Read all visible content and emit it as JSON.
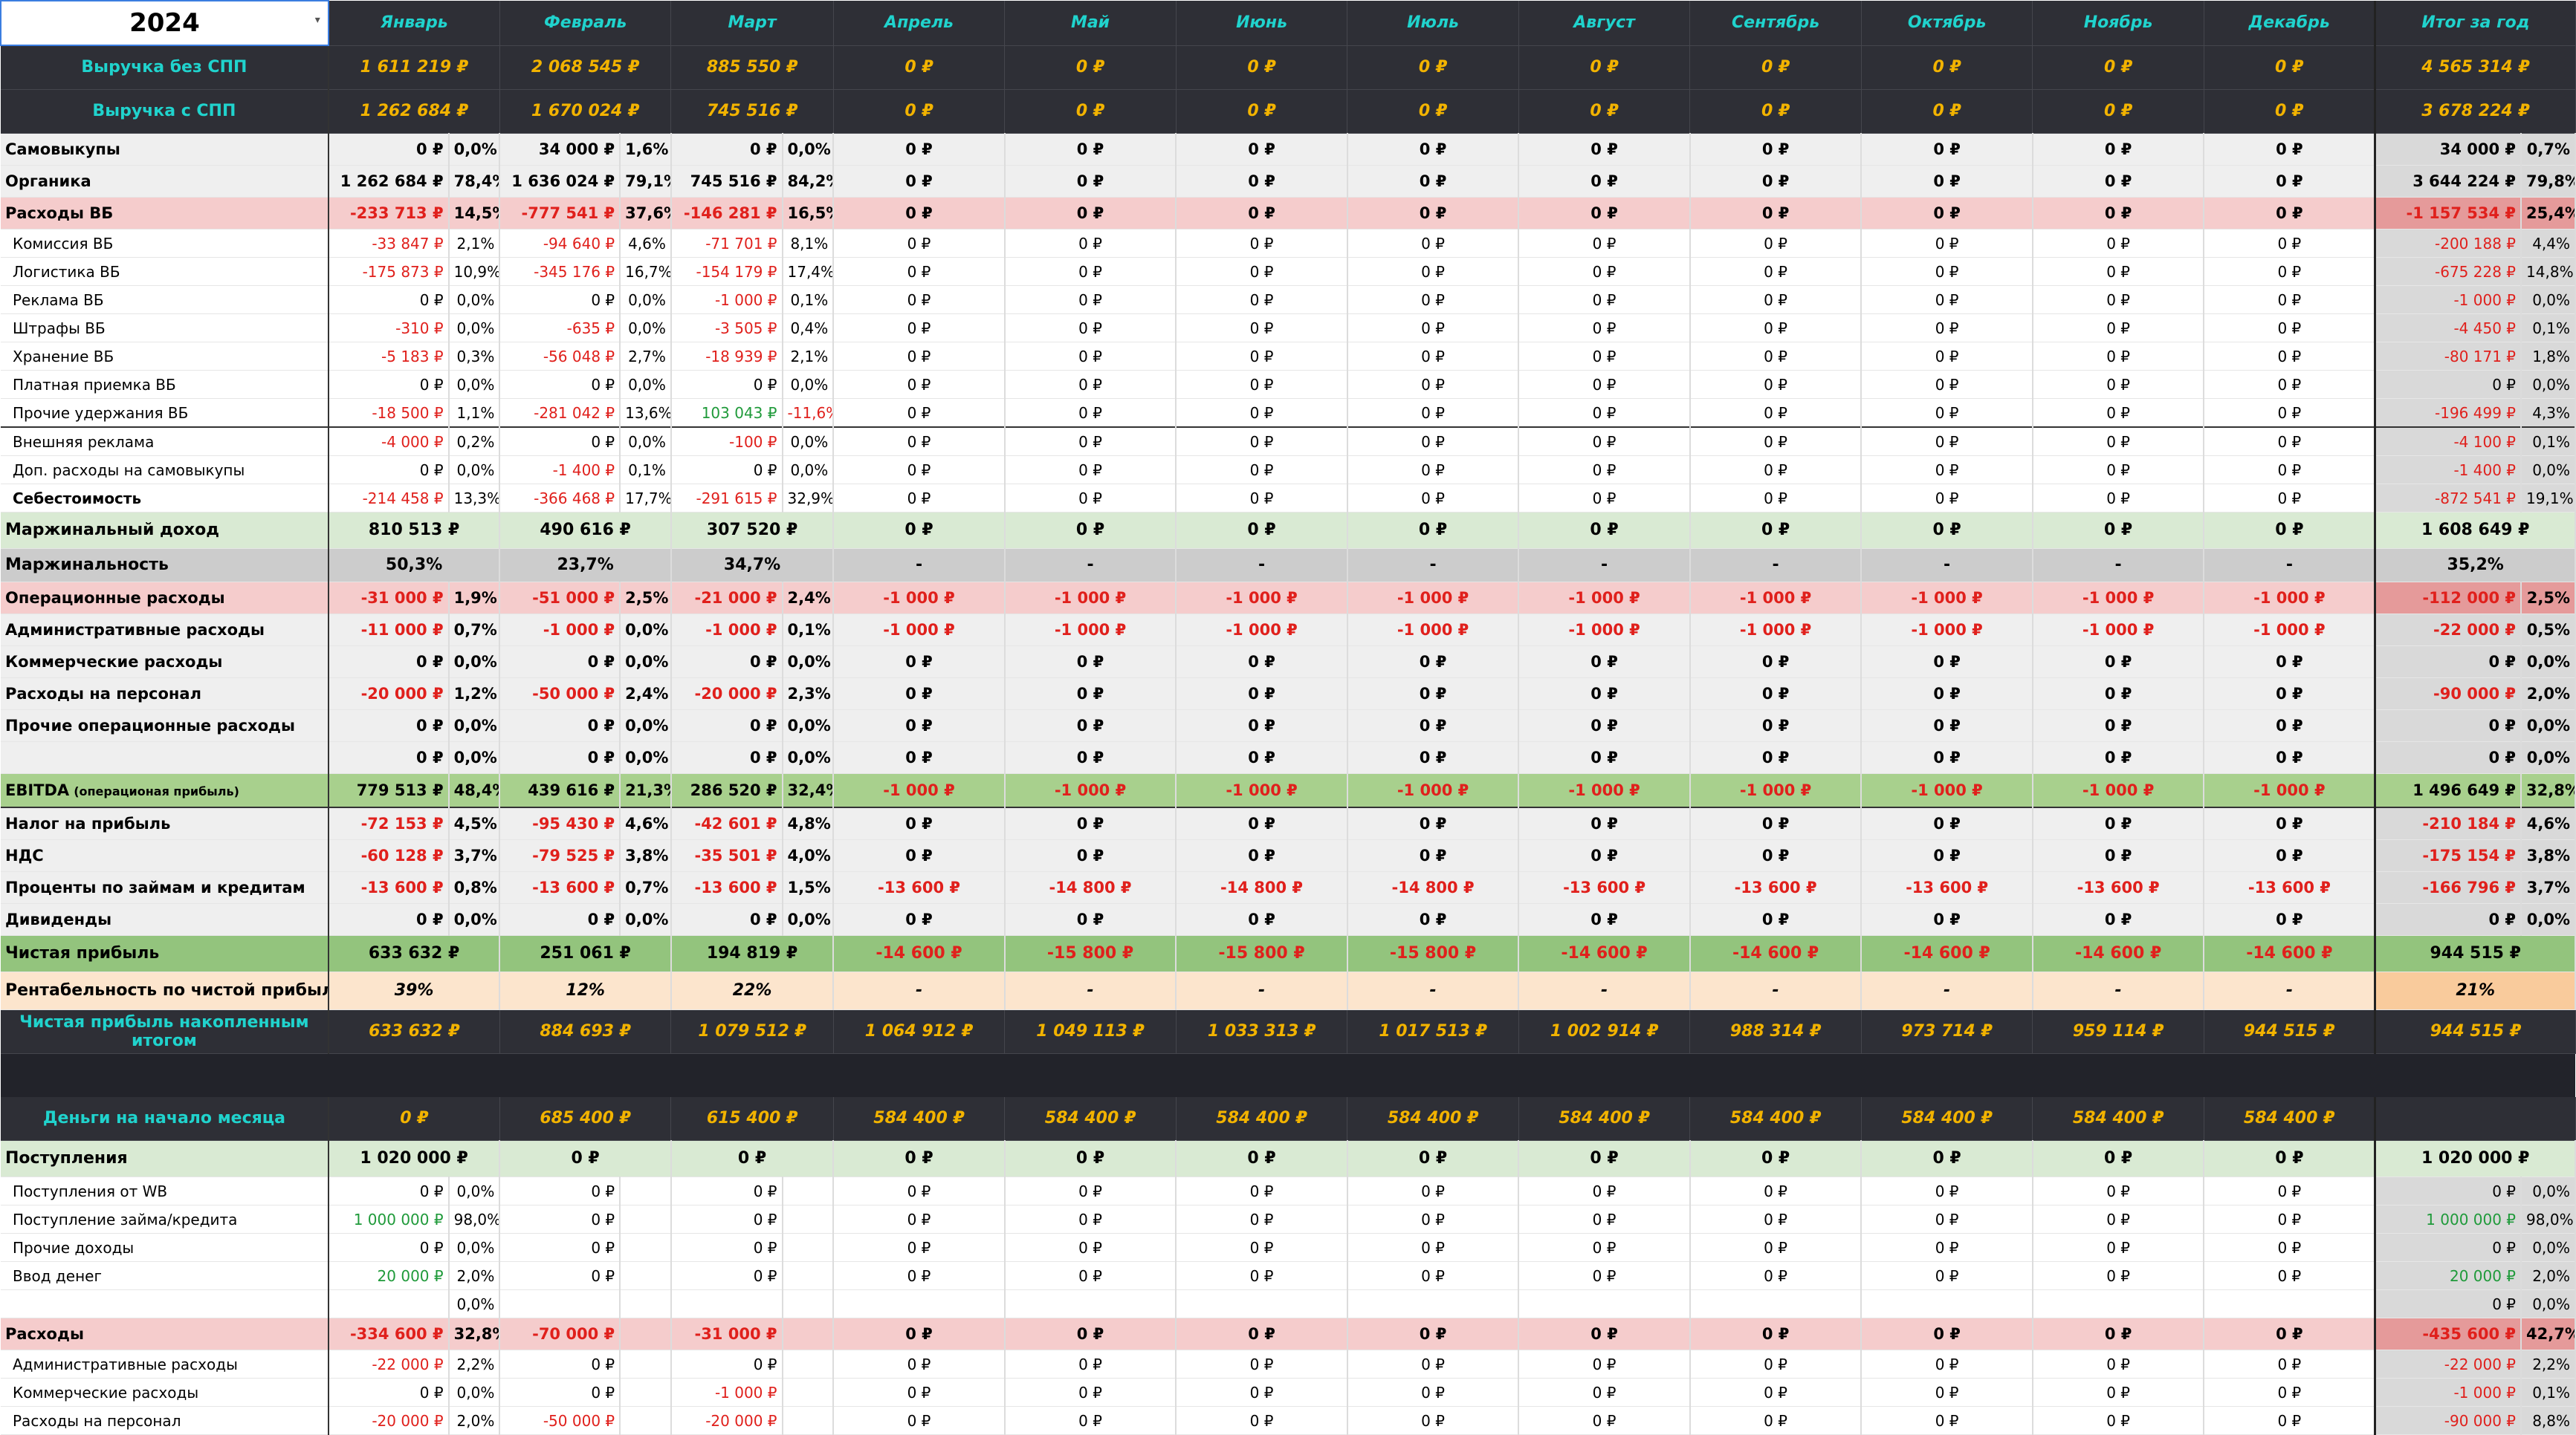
{
  "year": "2024",
  "months": [
    "Январь",
    "Февраль",
    "Март",
    "Апрель",
    "Май",
    "Июнь",
    "Июль",
    "Август",
    "Сентябрь",
    "Октябрь",
    "Ноябрь",
    "Декабрь"
  ],
  "total_label": "Итог за год",
  "rows": [
    {
      "style": "dark",
      "label": "Выручка без СПП",
      "vals": [
        "1 611 219 ₽",
        "2 068 545 ₽",
        "885 550 ₽",
        "0 ₽",
        "0 ₽",
        "0 ₽",
        "0 ₽",
        "0 ₽",
        "0 ₽",
        "0 ₽",
        "0 ₽",
        "0 ₽"
      ],
      "total": "4 565 314 ₽"
    },
    {
      "style": "dark",
      "label": "Выручка с СПП",
      "vals": [
        "1 262 684 ₽",
        "1 670 024 ₽",
        "745 516 ₽",
        "0 ₽",
        "0 ₽",
        "0 ₽",
        "0 ₽",
        "0 ₽",
        "0 ₽",
        "0 ₽",
        "0 ₽",
        "0 ₽"
      ],
      "total": "3 678 224 ₽"
    },
    {
      "style": "gray",
      "label": "Самовыкупы",
      "vals": [
        "0 ₽",
        "34 000 ₽",
        "0 ₽",
        "0 ₽",
        "0 ₽",
        "0 ₽",
        "0 ₽",
        "0 ₽",
        "0 ₽",
        "0 ₽",
        "0 ₽",
        "0 ₽"
      ],
      "pcts": [
        "0,0%",
        "1,6%",
        "0,0%"
      ],
      "total": "34 000 ₽",
      "tpct": "0,7%"
    },
    {
      "style": "gray",
      "label": "Органика",
      "vals": [
        "1 262 684 ₽",
        "1 636 024 ₽",
        "745 516 ₽",
        "0 ₽",
        "0 ₽",
        "0 ₽",
        "0 ₽",
        "0 ₽",
        "0 ₽",
        "0 ₽",
        "0 ₽",
        "0 ₽"
      ],
      "pcts": [
        "78,4%",
        "79,1%",
        "84,2%"
      ],
      "total": "3 644 224 ₽",
      "tpct": "79,8%"
    },
    {
      "style": "pink",
      "label": "Расходы ВБ",
      "vals": [
        "-233 713 ₽",
        "-777 541 ₽",
        "-146 281 ₽",
        "0 ₽",
        "0 ₽",
        "0 ₽",
        "0 ₽",
        "0 ₽",
        "0 ₽",
        "0 ₽",
        "0 ₽",
        "0 ₽"
      ],
      "pcts": [
        "14,5%",
        "37,6%",
        "16,5%"
      ],
      "total": "-1 157 534 ₽",
      "tpct": "25,4%"
    },
    {
      "style": "sub",
      "label": "Комиссия ВБ",
      "vals": [
        "-33 847 ₽",
        "-94 640 ₽",
        "-71 701 ₽",
        "0 ₽",
        "0 ₽",
        "0 ₽",
        "0 ₽",
        "0 ₽",
        "0 ₽",
        "0 ₽",
        "0 ₽",
        "0 ₽"
      ],
      "pcts": [
        "2,1%",
        "4,6%",
        "8,1%"
      ],
      "total": "-200 188 ₽",
      "tpct": "4,4%"
    },
    {
      "style": "sub",
      "label": "Логистика ВБ",
      "vals": [
        "-175 873 ₽",
        "-345 176 ₽",
        "-154 179 ₽",
        "0 ₽",
        "0 ₽",
        "0 ₽",
        "0 ₽",
        "0 ₽",
        "0 ₽",
        "0 ₽",
        "0 ₽",
        "0 ₽"
      ],
      "pcts": [
        "10,9%",
        "16,7%",
        "17,4%"
      ],
      "total": "-675 228 ₽",
      "tpct": "14,8%"
    },
    {
      "style": "sub",
      "label": "Реклама ВБ",
      "vals": [
        "0 ₽",
        "0 ₽",
        "-1 000 ₽",
        "0 ₽",
        "0 ₽",
        "0 ₽",
        "0 ₽",
        "0 ₽",
        "0 ₽",
        "0 ₽",
        "0 ₽",
        "0 ₽"
      ],
      "pcts": [
        "0,0%",
        "0,0%",
        "0,1%"
      ],
      "total": "-1 000 ₽",
      "tpct": "0,0%"
    },
    {
      "style": "sub",
      "label": "Штрафы ВБ",
      "vals": [
        "-310 ₽",
        "-635 ₽",
        "-3 505 ₽",
        "0 ₽",
        "0 ₽",
        "0 ₽",
        "0 ₽",
        "0 ₽",
        "0 ₽",
        "0 ₽",
        "0 ₽",
        "0 ₽"
      ],
      "pcts": [
        "0,0%",
        "0,0%",
        "0,4%"
      ],
      "total": "-4 450 ₽",
      "tpct": "0,1%"
    },
    {
      "style": "sub",
      "label": "Хранение ВБ",
      "vals": [
        "-5 183 ₽",
        "-56 048 ₽",
        "-18 939 ₽",
        "0 ₽",
        "0 ₽",
        "0 ₽",
        "0 ₽",
        "0 ₽",
        "0 ₽",
        "0 ₽",
        "0 ₽",
        "0 ₽"
      ],
      "pcts": [
        "0,3%",
        "2,7%",
        "2,1%"
      ],
      "total": "-80 171 ₽",
      "tpct": "1,8%"
    },
    {
      "style": "sub",
      "label": "Платная приемка ВБ",
      "vals": [
        "0 ₽",
        "0 ₽",
        "0 ₽",
        "0 ₽",
        "0 ₽",
        "0 ₽",
        "0 ₽",
        "0 ₽",
        "0 ₽",
        "0 ₽",
        "0 ₽",
        "0 ₽"
      ],
      "pcts": [
        "0,0%",
        "0,0%",
        "0,0%"
      ],
      "total": "0 ₽",
      "tpct": "0,0%"
    },
    {
      "style": "sub",
      "label": "Прочие удержания ВБ",
      "vals": [
        "-18 500 ₽",
        "-281 042 ₽",
        "103 043 ₽",
        "0 ₽",
        "0 ₽",
        "0 ₽",
        "0 ₽",
        "0 ₽",
        "0 ₽",
        "0 ₽",
        "0 ₽",
        "0 ₽"
      ],
      "pcts": [
        "1,1%",
        "13,6%",
        "-11,6%"
      ],
      "total": "-196 499 ₽",
      "tpct": "4,3%"
    },
    {
      "style": "sub",
      "sep": true,
      "label": "Внешняя реклама",
      "vals": [
        "-4 000 ₽",
        "0 ₽",
        "-100 ₽",
        "0 ₽",
        "0 ₽",
        "0 ₽",
        "0 ₽",
        "0 ₽",
        "0 ₽",
        "0 ₽",
        "0 ₽",
        "0 ₽"
      ],
      "pcts": [
        "0,2%",
        "0,0%",
        "0,0%"
      ],
      "total": "-4 100 ₽",
      "tpct": "0,1%"
    },
    {
      "style": "sub",
      "label": "Доп. расходы на самовыкупы",
      "vals": [
        "0 ₽",
        "-1 400 ₽",
        "0 ₽",
        "0 ₽",
        "0 ₽",
        "0 ₽",
        "0 ₽",
        "0 ₽",
        "0 ₽",
        "0 ₽",
        "0 ₽",
        "0 ₽"
      ],
      "pcts": [
        "0,0%",
        "0,1%",
        "0,0%"
      ],
      "total": "-1 400 ₽",
      "tpct": "0,0%"
    },
    {
      "style": "sub",
      "bold": true,
      "label": "Себестоимость",
      "vals": [
        "-214 458 ₽",
        "-366 468 ₽",
        "-291 615 ₽",
        "0 ₽",
        "0 ₽",
        "0 ₽",
        "0 ₽",
        "0 ₽",
        "0 ₽",
        "0 ₽",
        "0 ₽",
        "0 ₽"
      ],
      "pcts": [
        "13,3%",
        "17,7%",
        "32,9%"
      ],
      "total": "-872 541 ₽",
      "tpct": "19,1%"
    },
    {
      "style": "lgreen",
      "label": "Маржинальный доход",
      "vals": [
        "810 513 ₽",
        "490 616 ₽",
        "307 520 ₽",
        "0 ₽",
        "0 ₽",
        "0 ₽",
        "0 ₽",
        "0 ₽",
        "0 ₽",
        "0 ₽",
        "0 ₽",
        "0 ₽"
      ],
      "total": "1 608 649 ₽"
    },
    {
      "style": "lgray",
      "label": "Маржинальность",
      "vals": [
        "50,3%",
        "23,7%",
        "34,7%",
        "-",
        "-",
        "-",
        "-",
        "-",
        "-",
        "-",
        "-",
        "-"
      ],
      "total": "35,2%"
    },
    {
      "style": "pink",
      "label": "Операционные расходы",
      "vals": [
        "-31 000 ₽",
        "-51 000 ₽",
        "-21 000 ₽",
        "-1 000 ₽",
        "-1 000 ₽",
        "-1 000 ₽",
        "-1 000 ₽",
        "-1 000 ₽",
        "-1 000 ₽",
        "-1 000 ₽",
        "-1 000 ₽",
        "-1 000 ₽"
      ],
      "pcts": [
        "1,9%",
        "2,5%",
        "2,4%"
      ],
      "total": "-112 000 ₽",
      "tpct": "2,5%"
    },
    {
      "style": "gray",
      "label": "Административные расходы",
      "vals": [
        "-11 000 ₽",
        "-1 000 ₽",
        "-1 000 ₽",
        "-1 000 ₽",
        "-1 000 ₽",
        "-1 000 ₽",
        "-1 000 ₽",
        "-1 000 ₽",
        "-1 000 ₽",
        "-1 000 ₽",
        "-1 000 ₽",
        "-1 000 ₽"
      ],
      "pcts": [
        "0,7%",
        "0,0%",
        "0,1%"
      ],
      "total": "-22 000 ₽",
      "tpct": "0,5%"
    },
    {
      "style": "gray",
      "label": "Коммерческие расходы",
      "vals": [
        "0 ₽",
        "0 ₽",
        "0 ₽",
        "0 ₽",
        "0 ₽",
        "0 ₽",
        "0 ₽",
        "0 ₽",
        "0 ₽",
        "0 ₽",
        "0 ₽",
        "0 ₽"
      ],
      "pcts": [
        "0,0%",
        "0,0%",
        "0,0%"
      ],
      "total": "0 ₽",
      "tpct": "0,0%"
    },
    {
      "style": "gray",
      "label": "Расходы на персонал",
      "vals": [
        "-20 000 ₽",
        "-50 000 ₽",
        "-20 000 ₽",
        "0 ₽",
        "0 ₽",
        "0 ₽",
        "0 ₽",
        "0 ₽",
        "0 ₽",
        "0 ₽",
        "0 ₽",
        "0 ₽"
      ],
      "pcts": [
        "1,2%",
        "2,4%",
        "2,3%"
      ],
      "total": "-90 000 ₽",
      "tpct": "2,0%"
    },
    {
      "style": "gray",
      "label": "Прочие операционные расходы",
      "vals": [
        "0 ₽",
        "0 ₽",
        "0 ₽",
        "0 ₽",
        "0 ₽",
        "0 ₽",
        "0 ₽",
        "0 ₽",
        "0 ₽",
        "0 ₽",
        "0 ₽",
        "0 ₽"
      ],
      "pcts": [
        "0,0%",
        "0,0%",
        "0,0%"
      ],
      "total": "0 ₽",
      "tpct": "0,0%"
    },
    {
      "style": "gray",
      "label": "",
      "vals": [
        "0 ₽",
        "0 ₽",
        "0 ₽",
        "0 ₽",
        "0 ₽",
        "0 ₽",
        "0 ₽",
        "0 ₽",
        "0 ₽",
        "0 ₽",
        "0 ₽",
        "0 ₽"
      ],
      "pcts": [
        "0,0%",
        "0,0%",
        "0,0%"
      ],
      "total": "0 ₽",
      "tpct": "0,0%"
    },
    {
      "style": "mgreen",
      "label": "EBITDA",
      "label_small": "(операционая прибыль)",
      "vals": [
        "779 513 ₽",
        "439 616 ₽",
        "286 520 ₽",
        "-1 000 ₽",
        "-1 000 ₽",
        "-1 000 ₽",
        "-1 000 ₽",
        "-1 000 ₽",
        "-1 000 ₽",
        "-1 000 ₽",
        "-1 000 ₽",
        "-1 000 ₽"
      ],
      "pcts": [
        "48,4%",
        "21,3%",
        "32,4%"
      ],
      "total": "1 496 649 ₽",
      "tpct": "32,8%"
    },
    {
      "style": "gray",
      "sep": true,
      "label": "Налог на прибыль",
      "vals": [
        "-72 153 ₽",
        "-95 430 ₽",
        "-42 601 ₽",
        "0 ₽",
        "0 ₽",
        "0 ₽",
        "0 ₽",
        "0 ₽",
        "0 ₽",
        "0 ₽",
        "0 ₽",
        "0 ₽"
      ],
      "pcts": [
        "4,5%",
        "4,6%",
        "4,8%"
      ],
      "total": "-210 184 ₽",
      "tpct": "4,6%"
    },
    {
      "style": "gray",
      "label": "НДС",
      "vals": [
        "-60 128 ₽",
        "-79 525 ₽",
        "-35 501 ₽",
        "0 ₽",
        "0 ₽",
        "0 ₽",
        "0 ₽",
        "0 ₽",
        "0 ₽",
        "0 ₽",
        "0 ₽",
        "0 ₽"
      ],
      "pcts": [
        "3,7%",
        "3,8%",
        "4,0%"
      ],
      "total": "-175 154 ₽",
      "tpct": "3,8%"
    },
    {
      "style": "gray",
      "label": "Проценты по займам и кредитам",
      "vals": [
        "-13 600 ₽",
        "-13 600 ₽",
        "-13 600 ₽",
        "-13 600 ₽",
        "-14 800 ₽",
        "-14 800 ₽",
        "-14 800 ₽",
        "-13 600 ₽",
        "-13 600 ₽",
        "-13 600 ₽",
        "-13 600 ₽",
        "-13 600 ₽"
      ],
      "pcts": [
        "0,8%",
        "0,7%",
        "1,5%"
      ],
      "total": "-166 796 ₽",
      "tpct": "3,7%"
    },
    {
      "style": "gray",
      "label": "Дивиденды",
      "vals": [
        "0 ₽",
        "0 ₽",
        "0 ₽",
        "0 ₽",
        "0 ₽",
        "0 ₽",
        "0 ₽",
        "0 ₽",
        "0 ₽",
        "0 ₽",
        "0 ₽",
        "0 ₽"
      ],
      "pcts": [
        "0,0%",
        "0,0%",
        "0,0%"
      ],
      "total": "0 ₽",
      "tpct": "0,0%"
    },
    {
      "style": "dgreen",
      "label": "Чистая прибыль",
      "vals": [
        "633 632 ₽",
        "251 061 ₽",
        "194 819 ₽",
        "-14 600 ₽",
        "-15 800 ₽",
        "-15 800 ₽",
        "-15 800 ₽",
        "-14 600 ₽",
        "-14 600 ₽",
        "-14 600 ₽",
        "-14 600 ₽",
        "-14 600 ₽"
      ],
      "total": "944 515 ₽"
    },
    {
      "style": "peach",
      "label": "Рентабельность по чистой прибыли",
      "vals": [
        "39%",
        "12%",
        "22%",
        "-",
        "-",
        "-",
        "-",
        "-",
        "-",
        "-",
        "-",
        "-"
      ],
      "total": "21%",
      "italic": true
    },
    {
      "style": "dark",
      "label": "Чистая прибыль накопленным итогом",
      "vals": [
        "633 632 ₽",
        "884 693 ₽",
        "1 079 512 ₽",
        "1 064 912 ₽",
        "1 049 113 ₽",
        "1 033 313 ₽",
        "1 017 513 ₽",
        "1 002 914 ₽",
        "988 314 ₽",
        "973 714 ₽",
        "959 114 ₽",
        "944 515 ₽"
      ],
      "total": "944 515 ₽"
    },
    {
      "style": "blank-dark"
    },
    {
      "style": "dark",
      "label": "Деньги на начало месяца",
      "vals": [
        "0 ₽",
        "685 400 ₽",
        "615 400 ₽",
        "584 400 ₽",
        "584 400 ₽",
        "584 400 ₽",
        "584 400 ₽",
        "584 400 ₽",
        "584 400 ₽",
        "584 400 ₽",
        "584 400 ₽",
        "584 400 ₽"
      ],
      "total": ""
    },
    {
      "style": "lgreen",
      "label": "Поступления",
      "vals": [
        "1 020 000 ₽",
        "0 ₽",
        "0 ₽",
        "0 ₽",
        "0 ₽",
        "0 ₽",
        "0 ₽",
        "0 ₽",
        "0 ₽",
        "0 ₽",
        "0 ₽",
        "0 ₽"
      ],
      "total": "1 020 000 ₽"
    },
    {
      "style": "sub",
      "label": "Поступления от WB",
      "vals": [
        "0 ₽",
        "0 ₽",
        "0 ₽",
        "0 ₽",
        "0 ₽",
        "0 ₽",
        "0 ₽",
        "0 ₽",
        "0 ₽",
        "0 ₽",
        "0 ₽",
        "0 ₽"
      ],
      "pcts": [
        "0,0%",
        "",
        ""
      ],
      "total": "0 ₽",
      "tpct": "0,0%"
    },
    {
      "style": "sub",
      "label": "Поступление займа/кредита",
      "vals": [
        "1 000 000 ₽",
        "0 ₽",
        "0 ₽",
        "0 ₽",
        "0 ₽",
        "0 ₽",
        "0 ₽",
        "0 ₽",
        "0 ₽",
        "0 ₽",
        "0 ₽",
        "0 ₽"
      ],
      "pcts": [
        "98,0%",
        "",
        ""
      ],
      "total": "1 000 000 ₽",
      "tpct": "98,0%"
    },
    {
      "style": "sub",
      "label": "Прочие доходы",
      "vals": [
        "0 ₽",
        "0 ₽",
        "0 ₽",
        "0 ₽",
        "0 ₽",
        "0 ₽",
        "0 ₽",
        "0 ₽",
        "0 ₽",
        "0 ₽",
        "0 ₽",
        "0 ₽"
      ],
      "pcts": [
        "0,0%",
        "",
        ""
      ],
      "total": "0 ₽",
      "tpct": "0,0%"
    },
    {
      "style": "sub",
      "label": "Ввод денег",
      "vals": [
        "20 000 ₽",
        "0 ₽",
        "0 ₽",
        "0 ₽",
        "0 ₽",
        "0 ₽",
        "0 ₽",
        "0 ₽",
        "0 ₽",
        "0 ₽",
        "0 ₽",
        "0 ₽"
      ],
      "pcts": [
        "2,0%",
        "",
        ""
      ],
      "total": "20 000 ₽",
      "tpct": "2,0%"
    },
    {
      "style": "sub",
      "label": "",
      "vals": [
        "",
        "",
        "",
        "",
        "",
        "",
        "",
        "",
        "",
        "",
        "",
        ""
      ],
      "pcts": [
        "0,0%",
        "",
        ""
      ],
      "total": "0 ₽",
      "tpct": "0,0%"
    },
    {
      "style": "pink",
      "label": "Расходы",
      "vals": [
        "-334 600 ₽",
        "-70 000 ₽",
        "-31 000 ₽",
        "0 ₽",
        "0 ₽",
        "0 ₽",
        "0 ₽",
        "0 ₽",
        "0 ₽",
        "0 ₽",
        "0 ₽",
        "0 ₽"
      ],
      "pcts": [
        "32,8%",
        "",
        ""
      ],
      "total": "-435 600 ₽",
      "tpct": "42,7%"
    },
    {
      "style": "sub",
      "label": "Административные расходы",
      "vals": [
        "-22 000 ₽",
        "0 ₽",
        "0 ₽",
        "0 ₽",
        "0 ₽",
        "0 ₽",
        "0 ₽",
        "0 ₽",
        "0 ₽",
        "0 ₽",
        "0 ₽",
        "0 ₽"
      ],
      "pcts": [
        "2,2%",
        "",
        ""
      ],
      "total": "-22 000 ₽",
      "tpct": "2,2%"
    },
    {
      "style": "sub",
      "label": "Коммерческие расходы",
      "vals": [
        "0 ₽",
        "0 ₽",
        "-1 000 ₽",
        "0 ₽",
        "0 ₽",
        "0 ₽",
        "0 ₽",
        "0 ₽",
        "0 ₽",
        "0 ₽",
        "0 ₽",
        "0 ₽"
      ],
      "pcts": [
        "0,0%",
        "",
        ""
      ],
      "total": "-1 000 ₽",
      "tpct": "0,1%"
    },
    {
      "style": "sub",
      "label": "Расходы на персонал",
      "vals": [
        "-20 000 ₽",
        "-50 000 ₽",
        "-20 000 ₽",
        "0 ₽",
        "0 ₽",
        "0 ₽",
        "0 ₽",
        "0 ₽",
        "0 ₽",
        "0 ₽",
        "0 ₽",
        "0 ₽"
      ],
      "pcts": [
        "2,0%",
        "",
        ""
      ],
      "total": "-90 000 ₽",
      "tpct": "8,8%"
    }
  ],
  "colors": {
    "dark": "#2e2f36",
    "accent_cyan": "#20d3cd",
    "accent_yellow": "#f2b300",
    "neg_red": "#e0201c",
    "pos_green": "#1f9a3a"
  }
}
